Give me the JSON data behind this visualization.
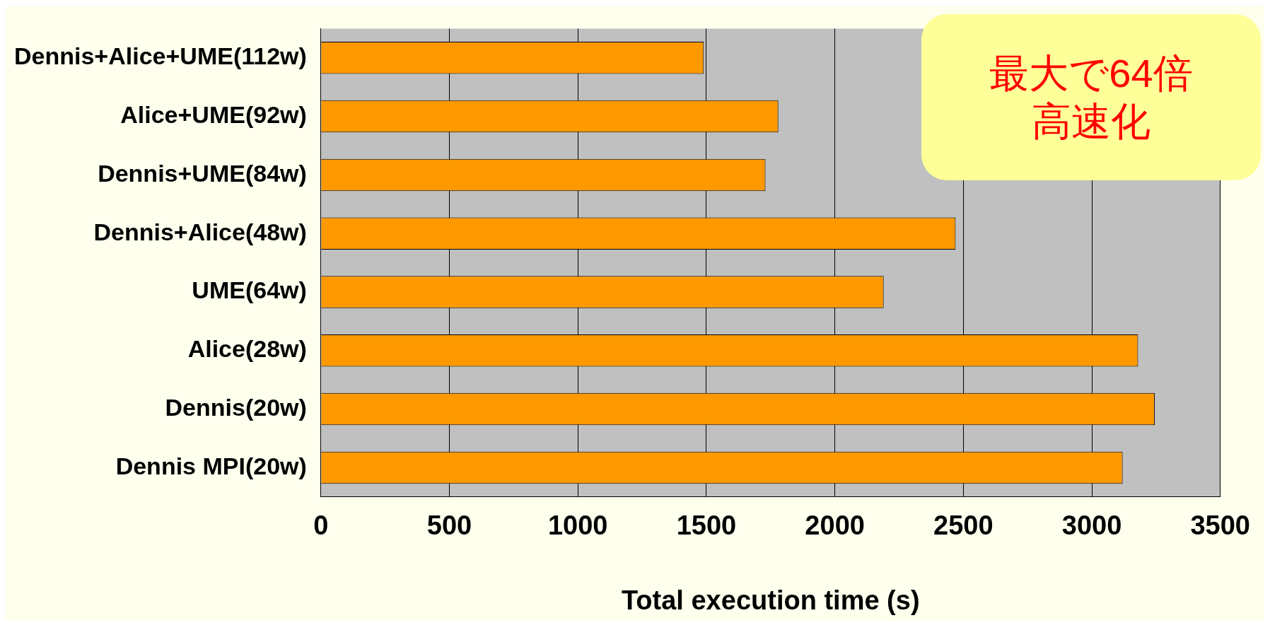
{
  "chart_data": {
    "type": "bar",
    "orientation": "horizontal",
    "xlabel": "Total execution time (s)",
    "categories": [
      "Dennis+Alice+UME(112w)",
      "Alice+UME(92w)",
      "Dennis+UME(84w)",
      "Dennis+Alice(48w)",
      "UME(64w)",
      "Alice(28w)",
      "Dennis(20w)",
      "Dennis MPI(20w)"
    ],
    "values": [
      1490,
      1780,
      1730,
      2470,
      2190,
      3180,
      3245,
      3120
    ],
    "color": "#ff9900",
    "xlim": [
      0,
      3500
    ],
    "xticks": [
      0,
      500,
      1000,
      1500,
      2000,
      2500,
      3000,
      3500
    ],
    "grid": "x",
    "legend": false,
    "annotations": [
      "最大で64倍高速化"
    ]
  }
}
